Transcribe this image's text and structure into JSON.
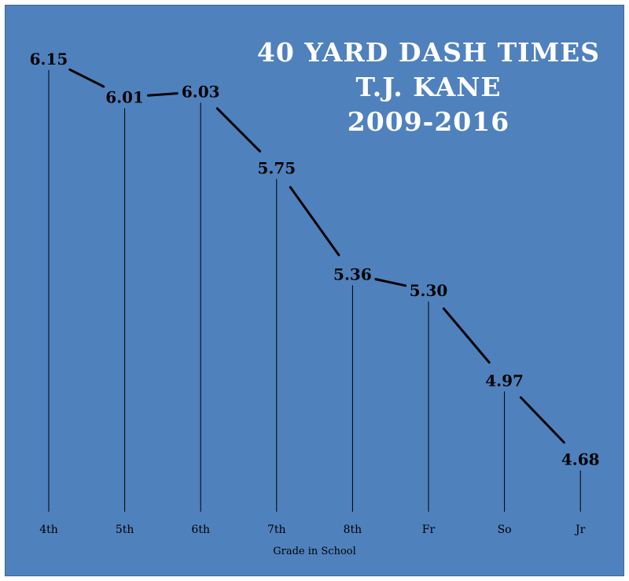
{
  "chart_data": {
    "type": "line",
    "title_lines": [
      "40 YARD DASH TIMES",
      "T.J. KANE",
      "2009-2016"
    ],
    "xlabel": "Grade in School",
    "ylabel": "",
    "categories": [
      "4th",
      "5th",
      "6th",
      "7th",
      "8th",
      "Fr",
      "So",
      "Jr"
    ],
    "values": [
      6.15,
      6.01,
      6.03,
      5.75,
      5.36,
      5.3,
      4.97,
      4.68
    ],
    "value_labels": [
      "6.15",
      "6.01",
      "6.03",
      "5.75",
      "5.36",
      "5.30",
      "4.97",
      "4.68"
    ],
    "grid": false,
    "drop_lines": true,
    "colors": {
      "background": "#4f81bd",
      "line": "#000000",
      "title": "#ffffff"
    }
  }
}
